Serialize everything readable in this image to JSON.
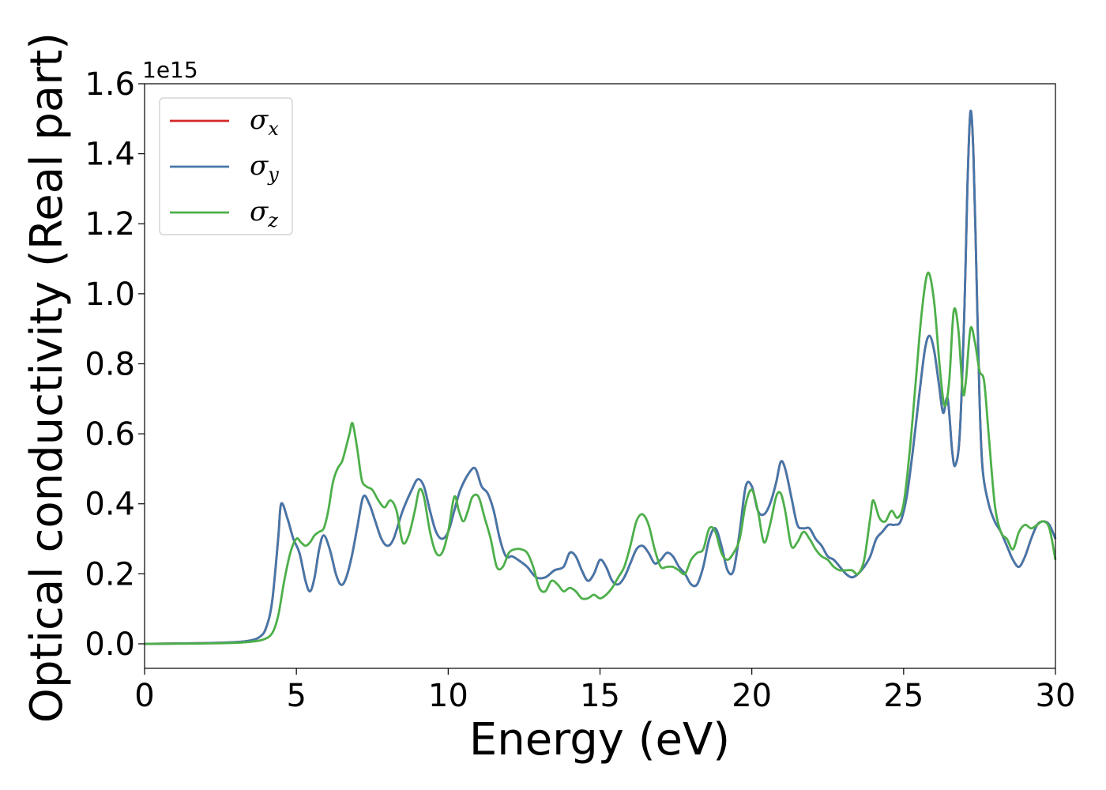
{
  "chart_data": {
    "type": "line",
    "xlabel": "Energy (eV)",
    "ylabel": "Optical conductivity (Real part)",
    "y_offset_label": "1e15",
    "xlim": [
      0,
      30
    ],
    "ylim": [
      -0.07,
      1.6
    ],
    "x_ticks": [
      0,
      5,
      10,
      15,
      20,
      25,
      30
    ],
    "x_tick_labels": [
      "0",
      "5",
      "10",
      "15",
      "20",
      "25",
      "30"
    ],
    "y_ticks": [
      0.0,
      0.2,
      0.4,
      0.6,
      0.8,
      1.0,
      1.2,
      1.4,
      1.6
    ],
    "y_tick_labels": [
      "0.0",
      "0.2",
      "0.4",
      "0.6",
      "0.8",
      "1.0",
      "1.2",
      "1.4",
      "1.6"
    ],
    "grid": false,
    "legend_position": "top-left",
    "series": [
      {
        "name": "σx",
        "legend_symbol": "σ",
        "legend_sub": "x",
        "color": "#d62728",
        "x": [
          0,
          2,
          3,
          3.5,
          3.8,
          4.0,
          4.2,
          4.4,
          4.5,
          4.7,
          4.9,
          5.1,
          5.3,
          5.45,
          5.6,
          5.75,
          5.9,
          6.1,
          6.3,
          6.45,
          6.6,
          6.8,
          7.0,
          7.2,
          7.4,
          7.6,
          7.8,
          8.0,
          8.2,
          8.5,
          8.8,
          9.0,
          9.2,
          9.4,
          9.6,
          9.8,
          10.0,
          10.2,
          10.4,
          10.7,
          10.9,
          11.1,
          11.3,
          11.5,
          11.7,
          11.9,
          12.1,
          12.3,
          12.6,
          12.9,
          13.2,
          13.5,
          13.8,
          14.0,
          14.2,
          14.4,
          14.6,
          14.8,
          15.0,
          15.2,
          15.4,
          15.6,
          15.8,
          16.0,
          16.2,
          16.4,
          16.6,
          16.8,
          17.0,
          17.2,
          17.4,
          17.6,
          17.8,
          18.0,
          18.2,
          18.4,
          18.6,
          18.8,
          19.0,
          19.2,
          19.4,
          19.6,
          19.8,
          20.0,
          20.2,
          20.4,
          20.6,
          20.8,
          20.95,
          21.1,
          21.3,
          21.5,
          21.7,
          21.9,
          22.1,
          22.3,
          22.5,
          22.7,
          22.9,
          23.1,
          23.3,
          23.5,
          23.7,
          23.9,
          24.1,
          24.3,
          24.5,
          24.7,
          24.9,
          25.1,
          25.3,
          25.5,
          25.7,
          25.85,
          26.0,
          26.15,
          26.3,
          26.45,
          26.6,
          26.7,
          26.85,
          27.0,
          27.1,
          27.2,
          27.3,
          27.4,
          27.5,
          27.6,
          27.8,
          28.0,
          28.2,
          28.4,
          28.6,
          28.8,
          29.0,
          29.2,
          29.4,
          29.6,
          29.8,
          30.0
        ],
        "y": [
          0.0,
          0.002,
          0.005,
          0.01,
          0.02,
          0.045,
          0.12,
          0.3,
          0.4,
          0.36,
          0.3,
          0.26,
          0.18,
          0.15,
          0.19,
          0.27,
          0.31,
          0.27,
          0.2,
          0.17,
          0.18,
          0.24,
          0.33,
          0.42,
          0.4,
          0.35,
          0.3,
          0.28,
          0.3,
          0.38,
          0.44,
          0.47,
          0.45,
          0.38,
          0.32,
          0.3,
          0.32,
          0.38,
          0.44,
          0.49,
          0.5,
          0.45,
          0.43,
          0.38,
          0.3,
          0.25,
          0.25,
          0.24,
          0.22,
          0.19,
          0.19,
          0.21,
          0.22,
          0.26,
          0.25,
          0.21,
          0.18,
          0.2,
          0.24,
          0.22,
          0.18,
          0.17,
          0.19,
          0.23,
          0.27,
          0.28,
          0.26,
          0.23,
          0.24,
          0.26,
          0.25,
          0.22,
          0.2,
          0.17,
          0.17,
          0.22,
          0.3,
          0.33,
          0.28,
          0.21,
          0.21,
          0.32,
          0.45,
          0.45,
          0.38,
          0.37,
          0.4,
          0.46,
          0.52,
          0.5,
          0.42,
          0.34,
          0.33,
          0.33,
          0.3,
          0.28,
          0.25,
          0.24,
          0.22,
          0.2,
          0.19,
          0.2,
          0.22,
          0.25,
          0.3,
          0.32,
          0.34,
          0.34,
          0.35,
          0.42,
          0.55,
          0.7,
          0.84,
          0.88,
          0.84,
          0.75,
          0.66,
          0.7,
          0.55,
          0.51,
          0.6,
          0.95,
          1.3,
          1.52,
          1.4,
          1.05,
          0.7,
          0.5,
          0.4,
          0.35,
          0.32,
          0.28,
          0.24,
          0.22,
          0.25,
          0.3,
          0.34,
          0.35,
          0.34,
          0.3
        ]
      },
      {
        "name": "σy",
        "legend_symbol": "σ",
        "legend_sub": "y",
        "color": "#4477aa",
        "x": [
          0,
          2,
          3,
          3.5,
          3.8,
          4.0,
          4.2,
          4.4,
          4.5,
          4.7,
          4.9,
          5.1,
          5.3,
          5.45,
          5.6,
          5.75,
          5.9,
          6.1,
          6.3,
          6.45,
          6.6,
          6.8,
          7.0,
          7.2,
          7.4,
          7.6,
          7.8,
          8.0,
          8.2,
          8.5,
          8.8,
          9.0,
          9.2,
          9.4,
          9.6,
          9.8,
          10.0,
          10.2,
          10.4,
          10.7,
          10.9,
          11.1,
          11.3,
          11.5,
          11.7,
          11.9,
          12.1,
          12.3,
          12.6,
          12.9,
          13.2,
          13.5,
          13.8,
          14.0,
          14.2,
          14.4,
          14.6,
          14.8,
          15.0,
          15.2,
          15.4,
          15.6,
          15.8,
          16.0,
          16.2,
          16.4,
          16.6,
          16.8,
          17.0,
          17.2,
          17.4,
          17.6,
          17.8,
          18.0,
          18.2,
          18.4,
          18.6,
          18.8,
          19.0,
          19.2,
          19.4,
          19.6,
          19.8,
          20.0,
          20.2,
          20.4,
          20.6,
          20.8,
          20.95,
          21.1,
          21.3,
          21.5,
          21.7,
          21.9,
          22.1,
          22.3,
          22.5,
          22.7,
          22.9,
          23.1,
          23.3,
          23.5,
          23.7,
          23.9,
          24.1,
          24.3,
          24.5,
          24.7,
          24.9,
          25.1,
          25.3,
          25.5,
          25.7,
          25.85,
          26.0,
          26.15,
          26.3,
          26.45,
          26.6,
          26.7,
          26.85,
          27.0,
          27.1,
          27.2,
          27.3,
          27.4,
          27.5,
          27.6,
          27.8,
          28.0,
          28.2,
          28.4,
          28.6,
          28.8,
          29.0,
          29.2,
          29.4,
          29.6,
          29.8,
          30.0
        ],
        "y": [
          0.0,
          0.002,
          0.005,
          0.01,
          0.02,
          0.045,
          0.12,
          0.3,
          0.4,
          0.36,
          0.3,
          0.26,
          0.18,
          0.15,
          0.19,
          0.27,
          0.31,
          0.27,
          0.2,
          0.17,
          0.18,
          0.24,
          0.33,
          0.42,
          0.4,
          0.35,
          0.3,
          0.28,
          0.3,
          0.38,
          0.44,
          0.47,
          0.45,
          0.38,
          0.32,
          0.3,
          0.32,
          0.38,
          0.44,
          0.49,
          0.5,
          0.45,
          0.43,
          0.38,
          0.3,
          0.25,
          0.25,
          0.24,
          0.22,
          0.19,
          0.19,
          0.21,
          0.22,
          0.26,
          0.25,
          0.21,
          0.18,
          0.2,
          0.24,
          0.22,
          0.18,
          0.17,
          0.19,
          0.23,
          0.27,
          0.28,
          0.26,
          0.23,
          0.24,
          0.26,
          0.25,
          0.22,
          0.2,
          0.17,
          0.17,
          0.22,
          0.3,
          0.33,
          0.28,
          0.21,
          0.21,
          0.32,
          0.45,
          0.45,
          0.38,
          0.37,
          0.4,
          0.46,
          0.52,
          0.5,
          0.42,
          0.34,
          0.33,
          0.33,
          0.3,
          0.28,
          0.25,
          0.24,
          0.22,
          0.2,
          0.19,
          0.2,
          0.22,
          0.25,
          0.3,
          0.32,
          0.34,
          0.34,
          0.35,
          0.42,
          0.55,
          0.7,
          0.84,
          0.88,
          0.84,
          0.75,
          0.66,
          0.7,
          0.55,
          0.51,
          0.6,
          0.95,
          1.3,
          1.52,
          1.4,
          1.05,
          0.7,
          0.5,
          0.4,
          0.35,
          0.32,
          0.28,
          0.24,
          0.22,
          0.25,
          0.3,
          0.34,
          0.35,
          0.34,
          0.3
        ]
      },
      {
        "name": "σz",
        "legend_symbol": "σ",
        "legend_sub": "z",
        "color": "#4daf4a",
        "x": [
          0,
          2,
          3,
          3.5,
          3.9,
          4.2,
          4.4,
          4.6,
          4.8,
          5.0,
          5.15,
          5.3,
          5.45,
          5.6,
          5.75,
          5.9,
          6.05,
          6.2,
          6.35,
          6.5,
          6.6,
          6.75,
          6.85,
          7.0,
          7.15,
          7.3,
          7.5,
          7.7,
          7.9,
          8.1,
          8.3,
          8.5,
          8.7,
          8.9,
          9.05,
          9.2,
          9.4,
          9.6,
          9.8,
          10.0,
          10.2,
          10.35,
          10.5,
          10.65,
          10.8,
          11.0,
          11.2,
          11.4,
          11.6,
          11.8,
          12.0,
          12.2,
          12.4,
          12.6,
          12.8,
          13.0,
          13.2,
          13.4,
          13.6,
          13.8,
          14.0,
          14.2,
          14.4,
          14.6,
          14.8,
          15.0,
          15.2,
          15.4,
          15.6,
          15.8,
          16.0,
          16.2,
          16.4,
          16.6,
          16.8,
          17.0,
          17.2,
          17.4,
          17.6,
          17.8,
          18.0,
          18.2,
          18.4,
          18.6,
          18.8,
          19.0,
          19.2,
          19.4,
          19.6,
          19.8,
          20.0,
          20.2,
          20.4,
          20.6,
          20.8,
          20.95,
          21.1,
          21.3,
          21.5,
          21.7,
          21.9,
          22.1,
          22.3,
          22.5,
          22.7,
          22.9,
          23.1,
          23.3,
          23.5,
          23.7,
          23.9,
          24.0,
          24.2,
          24.4,
          24.6,
          24.8,
          25.0,
          25.2,
          25.4,
          25.6,
          25.8,
          26.0,
          26.2,
          26.35,
          26.5,
          26.65,
          26.8,
          26.95,
          27.05,
          27.2,
          27.35,
          27.5,
          27.65,
          27.8,
          28.0,
          28.2,
          28.4,
          28.6,
          28.8,
          29.0,
          29.2,
          29.4,
          29.6,
          29.8,
          30.0
        ],
        "y": [
          0.0,
          0.001,
          0.003,
          0.006,
          0.012,
          0.03,
          0.08,
          0.18,
          0.26,
          0.3,
          0.29,
          0.28,
          0.29,
          0.31,
          0.32,
          0.33,
          0.38,
          0.46,
          0.5,
          0.52,
          0.55,
          0.6,
          0.63,
          0.56,
          0.47,
          0.45,
          0.44,
          0.41,
          0.39,
          0.41,
          0.38,
          0.29,
          0.31,
          0.38,
          0.44,
          0.42,
          0.32,
          0.26,
          0.26,
          0.32,
          0.42,
          0.38,
          0.35,
          0.38,
          0.42,
          0.42,
          0.36,
          0.3,
          0.22,
          0.22,
          0.26,
          0.27,
          0.27,
          0.26,
          0.22,
          0.16,
          0.15,
          0.18,
          0.17,
          0.15,
          0.16,
          0.15,
          0.13,
          0.13,
          0.14,
          0.13,
          0.14,
          0.16,
          0.19,
          0.22,
          0.28,
          0.35,
          0.37,
          0.34,
          0.27,
          0.22,
          0.22,
          0.22,
          0.21,
          0.2,
          0.24,
          0.26,
          0.27,
          0.33,
          0.32,
          0.26,
          0.24,
          0.26,
          0.3,
          0.4,
          0.44,
          0.38,
          0.29,
          0.34,
          0.42,
          0.43,
          0.38,
          0.28,
          0.29,
          0.32,
          0.3,
          0.27,
          0.25,
          0.24,
          0.22,
          0.21,
          0.21,
          0.21,
          0.2,
          0.24,
          0.36,
          0.41,
          0.36,
          0.35,
          0.38,
          0.36,
          0.4,
          0.55,
          0.75,
          0.95,
          1.06,
          0.98,
          0.78,
          0.68,
          0.75,
          0.95,
          0.9,
          0.72,
          0.75,
          0.9,
          0.86,
          0.78,
          0.75,
          0.6,
          0.4,
          0.32,
          0.3,
          0.27,
          0.32,
          0.34,
          0.33,
          0.34,
          0.35,
          0.33,
          0.24
        ]
      }
    ]
  }
}
